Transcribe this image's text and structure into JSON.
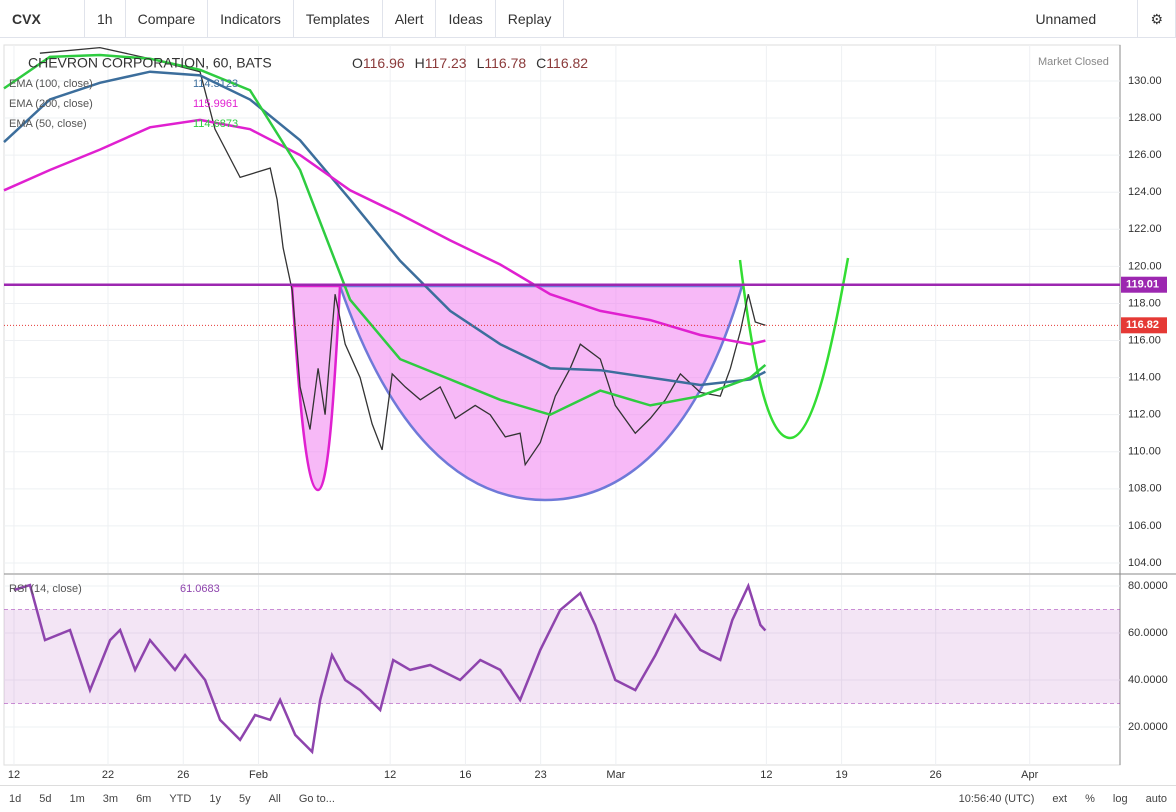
{
  "toolbar": {
    "symbol": "CVX",
    "interval": "1h",
    "buttons": [
      "Compare",
      "Indicators",
      "Templates",
      "Alert",
      "Ideas",
      "Replay"
    ],
    "layout_name": "Unnamed"
  },
  "legend": {
    "title": "CHEVRON CORPORATION, 60, BATS",
    "ohlc": [
      {
        "label": "O",
        "value": 116.96
      },
      {
        "label": "H",
        "value": 117.23
      },
      {
        "label": "L",
        "value": 116.78
      },
      {
        "label": "C",
        "value": 116.82
      }
    ],
    "status": "Market Closed"
  },
  "chart_data": [
    {
      "type": "line",
      "xlim": [
        -0.53,
        58.8
      ],
      "ylim": [
        103.46,
        131.94
      ],
      "yticks": [
        {
          "value": 104,
          "label": "104.00"
        },
        {
          "value": 106,
          "label": "106.00"
        },
        {
          "value": 108,
          "label": "108.00"
        },
        {
          "value": 110,
          "label": "110.00"
        },
        {
          "value": 112,
          "label": "112.00"
        },
        {
          "value": 114,
          "label": "114.00"
        },
        {
          "value": 116,
          "label": "116.00"
        },
        {
          "value": 118,
          "label": "118.00"
        },
        {
          "value": 120,
          "label": "120.00"
        },
        {
          "value": 122,
          "label": "122.00"
        },
        {
          "value": 124,
          "label": "124.00"
        },
        {
          "value": 126,
          "label": "126.00"
        },
        {
          "value": 128,
          "label": "128.00"
        },
        {
          "value": 130,
          "label": "130.00"
        }
      ],
      "grid": true,
      "hline": 119.01,
      "hline_color": "#9c27b0",
      "last_price": 116.82,
      "last_price_color": "#e53935",
      "series": [
        {
          "color": "#333333",
          "x": [
            1.38,
            4.57,
            7.23,
            9.89,
            10.69,
            12.02,
            13.62,
            13.99,
            14.31,
            14.79,
            15.21,
            15.74,
            16.17,
            16.54,
            17.07,
            17.61,
            18.4,
            19.04,
            19.57,
            20.11,
            20.8,
            21.6,
            22.66,
            23.46,
            24.52,
            25.32,
            26.12,
            26.91,
            27.18,
            27.98,
            28.78,
            29.57,
            30.11,
            31.17,
            31.97,
            33.03,
            33.83,
            34.63,
            35.43,
            36.49,
            37.55,
            38.09,
            38.62,
            39.04,
            39.41,
            39.95
          ],
          "values": [
            131.5,
            131.8,
            131.2,
            130.5,
            127.4,
            124.8,
            125.3,
            123.6,
            121.0,
            118.7,
            113.5,
            111.2,
            114.5,
            112.0,
            118.5,
            115.8,
            114.0,
            111.5,
            110.1,
            114.2,
            113.5,
            112.8,
            113.5,
            111.8,
            112.5,
            112.0,
            110.8,
            111.0,
            109.3,
            110.5,
            113.0,
            114.5,
            115.8,
            115.0,
            112.5,
            111.0,
            111.8,
            112.8,
            114.2,
            113.2,
            113.0,
            114.5,
            116.5,
            118.5,
            117.0,
            116.82
          ]
        },
        {
          "name": "EMA (100, close)",
          "last_value": 114.3123,
          "color": "#3c6e9c",
          "x": [
            -0.53,
            1.91,
            4.57,
            7.23,
            9.89,
            12.55,
            15.21,
            17.87,
            20.53,
            23.19,
            25.85,
            28.51,
            31.17,
            33.83,
            36.49,
            39.15,
            39.95
          ],
          "values": [
            126.7,
            129.0,
            129.9,
            130.5,
            130.3,
            129.0,
            126.8,
            123.6,
            120.3,
            117.6,
            115.8,
            114.5,
            114.4,
            114.0,
            113.6,
            113.9,
            114.3123
          ]
        },
        {
          "name": "EMA (200, close)",
          "last_value": 115.9961,
          "color": "#e020d0",
          "x": [
            -0.53,
            1.91,
            4.57,
            7.23,
            9.89,
            12.55,
            15.21,
            17.87,
            20.53,
            23.19,
            25.85,
            28.51,
            31.17,
            33.83,
            36.49,
            39.15,
            39.95
          ],
          "values": [
            124.1,
            125.2,
            126.3,
            127.5,
            127.9,
            127.4,
            126.0,
            124.1,
            122.8,
            121.4,
            120.1,
            118.5,
            117.6,
            117.1,
            116.3,
            115.8,
            115.9961
          ]
        },
        {
          "name": "EMA (50, close)",
          "last_value": 114.6873,
          "color": "#2ecc40",
          "x": [
            -0.53,
            1.91,
            4.57,
            7.23,
            9.89,
            12.55,
            15.21,
            17.87,
            20.53,
            23.19,
            25.85,
            28.51,
            31.17,
            33.83,
            36.49,
            39.15,
            39.95
          ],
          "values": [
            129.6,
            131.3,
            131.4,
            131.2,
            130.6,
            129.5,
            125.2,
            118.2,
            115.0,
            113.9,
            112.8,
            112.0,
            113.3,
            112.5,
            113.0,
            114.0,
            114.6873
          ]
        }
      ]
    },
    {
      "type": "line",
      "xlim": [
        -0.53,
        58.8
      ],
      "ylim": [
        3.8,
        84.7
      ],
      "yticks": [
        {
          "value": 20,
          "label": "20.0000"
        },
        {
          "value": 40,
          "label": "40.0000"
        },
        {
          "value": 60,
          "label": "60.0000"
        },
        {
          "value": 80,
          "label": "80.0000"
        }
      ],
      "xticks": [
        {
          "value": 0,
          "label": "12"
        },
        {
          "value": 5,
          "label": "22"
        },
        {
          "value": 9,
          "label": "26"
        },
        {
          "value": 13,
          "label": "Feb"
        },
        {
          "value": 20,
          "label": "12"
        },
        {
          "value": 24,
          "label": "16"
        },
        {
          "value": 28,
          "label": "23"
        },
        {
          "value": 32,
          "label": "Mar"
        },
        {
          "value": 40,
          "label": "12"
        },
        {
          "value": 44,
          "label": "19"
        },
        {
          "value": 49,
          "label": "26"
        },
        {
          "value": 54,
          "label": "Apr"
        }
      ],
      "grid": true,
      "band": [
        30,
        70
      ],
      "band_color": "#9c27b0",
      "series": [
        {
          "name": "RSI (14, close)",
          "last_value": 61.0683,
          "color": "#8e44ad",
          "x": [
            0,
            0.85,
            1.65,
            2.98,
            4.04,
            5.11,
            5.64,
            6.44,
            7.23,
            8.56,
            9.1,
            10.16,
            10.96,
            12.02,
            12.82,
            13.62,
            14.15,
            14.95,
            15.85,
            16.28,
            16.91,
            17.61,
            18.4,
            19.47,
            20.16,
            21.06,
            22.13,
            23.72,
            24.79,
            25.85,
            26.91,
            27.98,
            29.04,
            30.11,
            30.9,
            31.97,
            33.03,
            34.1,
            35.16,
            36.49,
            37.55,
            38.19,
            39.04,
            39.68,
            39.95
          ],
          "values": [
            78.3,
            80.4,
            57,
            61.3,
            35.7,
            57,
            61.3,
            44.3,
            57,
            44.3,
            50.6,
            40,
            23,
            14.5,
            25.1,
            23,
            31.5,
            16.6,
            9.4,
            31.5,
            50.6,
            40,
            35.7,
            27.2,
            48.5,
            44.3,
            46.4,
            40,
            48.5,
            44.3,
            31.5,
            52.8,
            69.8,
            77,
            63.4,
            40,
            35.7,
            50.6,
            67.7,
            52.8,
            48.5,
            65.5,
            80,
            63.4,
            61.0683
          ]
        }
      ]
    }
  ],
  "bottom_bar": {
    "ranges": [
      "1d",
      "5d",
      "1m",
      "3m",
      "6m",
      "YTD",
      "1y",
      "5y",
      "All"
    ],
    "goto": "Go to...",
    "time": "10:56:40 (UTC)",
    "toggles": [
      "ext",
      "%",
      "log",
      "auto"
    ]
  }
}
